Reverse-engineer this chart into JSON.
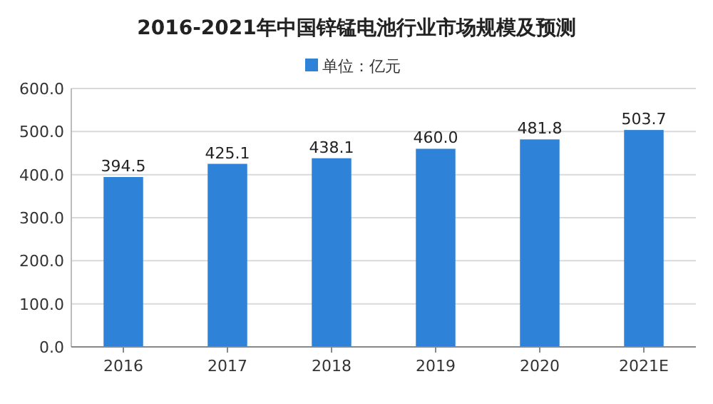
{
  "chart_data": {
    "type": "bar",
    "title": "2016-2021年中国锌锰电池行业市场规模及预测",
    "categories": [
      "2016",
      "2017",
      "2018",
      "2019",
      "2020",
      "2021E"
    ],
    "series": [
      {
        "name": "单位：亿元",
        "color": "#2e82d8",
        "values": [
          394.5,
          425.1,
          438.1,
          460.0,
          481.8,
          503.7
        ],
        "value_labels": [
          "394.5",
          "425.1",
          "438.1",
          "460.0",
          "481.8",
          "503.7"
        ]
      }
    ],
    "ylim": [
      0,
      600
    ],
    "yticks": [
      {
        "value": 0,
        "label": "0.0"
      },
      {
        "value": 100,
        "label": "100.0"
      },
      {
        "value": 200,
        "label": "200.0"
      },
      {
        "value": 300,
        "label": "300.0"
      },
      {
        "value": 400,
        "label": "400.0"
      },
      {
        "value": 500,
        "label": "500.0"
      },
      {
        "value": 600,
        "label": "600.0"
      }
    ],
    "grid": "y",
    "legend": "top"
  }
}
